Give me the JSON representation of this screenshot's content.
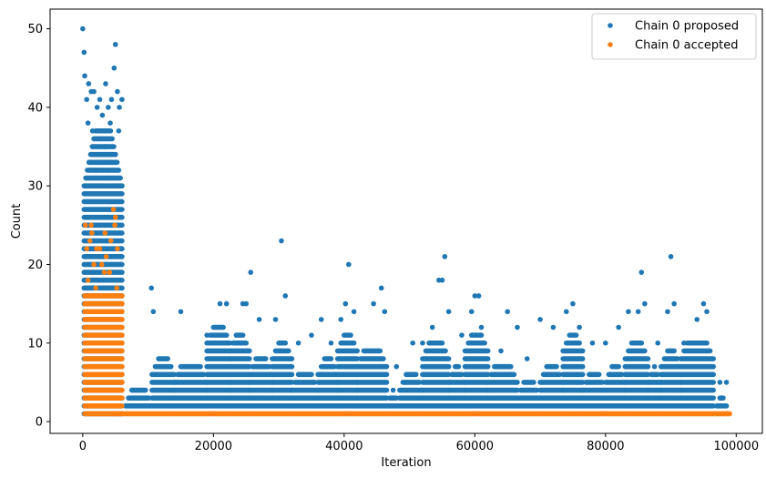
{
  "chart_data": {
    "type": "scatter",
    "title": "",
    "xlabel": "Iteration",
    "ylabel": "Count",
    "xlim": [
      -5000,
      104000
    ],
    "ylim": [
      -1.5,
      52.5
    ],
    "xticks": [
      0,
      20000,
      40000,
      60000,
      80000,
      100000
    ],
    "xtick_labels": [
      "0",
      "20000",
      "40000",
      "60000",
      "80000",
      "100000"
    ],
    "yticks": [
      0,
      10,
      20,
      30,
      40,
      50
    ],
    "ytick_labels": [
      "0",
      "10",
      "20",
      "30",
      "40",
      "50"
    ],
    "grid": false,
    "legend_position": "upper right",
    "series": [
      {
        "name": "Chain 0 proposed",
        "color": "#1f77b4",
        "points": [
          [
            0,
            50
          ],
          [
            200,
            47
          ],
          [
            300,
            44
          ],
          [
            600,
            41
          ],
          [
            900,
            43
          ],
          [
            1300,
            42
          ],
          [
            1700,
            42
          ],
          [
            2200,
            40
          ],
          [
            2600,
            41
          ],
          [
            3000,
            39
          ],
          [
            3500,
            43
          ],
          [
            3900,
            40
          ],
          [
            4400,
            41
          ],
          [
            4800,
            45
          ],
          [
            5000,
            48
          ],
          [
            5300,
            42
          ],
          [
            5600,
            40
          ],
          [
            6000,
            41
          ],
          [
            800,
            38
          ],
          [
            1500,
            37
          ],
          [
            2500,
            36
          ],
          [
            3300,
            35
          ],
          [
            4200,
            38
          ],
          [
            5500,
            37
          ],
          [
            1000,
            33
          ],
          [
            2000,
            32
          ],
          [
            3000,
            33
          ],
          [
            4000,
            31
          ],
          [
            5000,
            34
          ],
          [
            6000,
            30
          ],
          [
            10500,
            17
          ],
          [
            10800,
            14
          ],
          [
            15000,
            14
          ],
          [
            19000,
            11
          ],
          [
            21000,
            15
          ],
          [
            22000,
            15
          ],
          [
            23500,
            11
          ],
          [
            24500,
            15
          ],
          [
            25000,
            15
          ],
          [
            25700,
            19
          ],
          [
            27000,
            13
          ],
          [
            29500,
            13
          ],
          [
            30400,
            23
          ],
          [
            31000,
            16
          ],
          [
            33000,
            10
          ],
          [
            35000,
            11
          ],
          [
            36500,
            13
          ],
          [
            38000,
            10
          ],
          [
            39500,
            13
          ],
          [
            40200,
            15
          ],
          [
            40700,
            20
          ],
          [
            41500,
            14
          ],
          [
            44500,
            15
          ],
          [
            45700,
            17
          ],
          [
            46200,
            14
          ],
          [
            48000,
            7
          ],
          [
            50500,
            10
          ],
          [
            52000,
            10
          ],
          [
            53500,
            12
          ],
          [
            54500,
            18
          ],
          [
            55000,
            18
          ],
          [
            55400,
            21
          ],
          [
            56000,
            14
          ],
          [
            58000,
            11
          ],
          [
            59500,
            14
          ],
          [
            60000,
            16
          ],
          [
            60600,
            16
          ],
          [
            61000,
            12
          ],
          [
            64000,
            9
          ],
          [
            65000,
            14
          ],
          [
            66500,
            12
          ],
          [
            68000,
            8
          ],
          [
            70000,
            13
          ],
          [
            72000,
            12
          ],
          [
            74000,
            14
          ],
          [
            75000,
            15
          ],
          [
            76000,
            12
          ],
          [
            78000,
            10
          ],
          [
            80000,
            10
          ],
          [
            82000,
            12
          ],
          [
            83500,
            14
          ],
          [
            85000,
            14
          ],
          [
            85500,
            19
          ],
          [
            86000,
            15
          ],
          [
            88000,
            10
          ],
          [
            89500,
            14
          ],
          [
            90000,
            21
          ],
          [
            90500,
            15
          ],
          [
            92000,
            10
          ],
          [
            94000,
            13
          ],
          [
            95000,
            15
          ],
          [
            95500,
            14
          ],
          [
            97500,
            5
          ],
          [
            98500,
            5
          ]
        ]
      },
      {
        "name": "Chain 0 accepted",
        "color": "#ff7f0e",
        "points": [
          [
            400,
            25
          ],
          [
            1300,
            25
          ],
          [
            600,
            22
          ],
          [
            2100,
            22
          ],
          [
            5300,
            22
          ],
          [
            1400,
            24
          ],
          [
            3400,
            24
          ],
          [
            2600,
            22
          ],
          [
            1100,
            23
          ],
          [
            4700,
            27
          ],
          [
            5000,
            26
          ],
          [
            4900,
            25
          ],
          [
            3600,
            21
          ],
          [
            4300,
            23
          ],
          [
            1700,
            20
          ],
          [
            4100,
            19
          ],
          [
            2900,
            20
          ],
          [
            3300,
            19
          ],
          [
            800,
            18
          ],
          [
            5200,
            17
          ],
          [
            2000,
            17
          ],
          [
            5000,
            1
          ],
          [
            20000,
            1
          ],
          [
            40000,
            1
          ],
          [
            60000,
            1
          ],
          [
            80000,
            1
          ],
          [
            98000,
            1
          ]
        ]
      }
    ]
  }
}
